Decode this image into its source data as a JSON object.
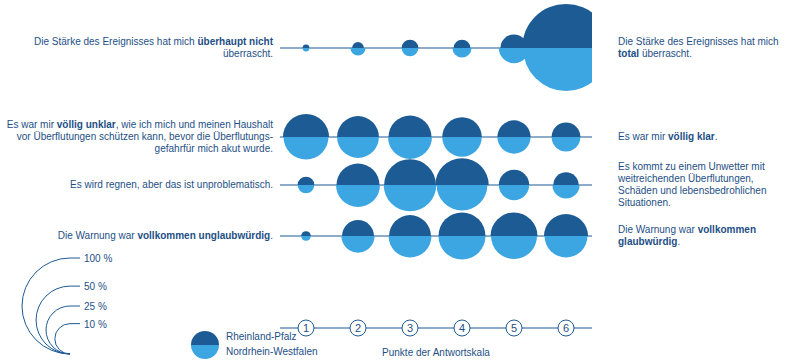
{
  "chart_data": {
    "type": "bubble",
    "x": [
      1,
      2,
      3,
      4,
      5,
      6
    ],
    "xlim": [
      0.5,
      6.5
    ],
    "xticks": [
      1,
      2,
      3,
      4,
      5,
      6
    ],
    "x_label": "Punkte der Antwortskala",
    "items": [
      {
        "left": "Die Stärke des Ereignisses hat mich überhaupt nicht überrascht.",
        "left_emphasis": "überhaupt nicht",
        "right": "Die Stärke des Ereignisses hat mich total überrascht.",
        "right_emphasis": "total"
      },
      {
        "left": "Es war mir völlig unklar, wie ich mich und meinen Haushalt vor Überflutungen schützen kann, bevor die Überflutungs-gefahrfür mich akut wurde.",
        "left_emphasis": "völlig unklar",
        "right": "Es war mir völlig klar.",
        "right_emphasis": "völlig klar"
      },
      {
        "left": "Es wird regnen, aber das ist unproblematisch.",
        "right": "Es kommt zu einem Unwetter mit weitreichenden Überflutungen, Schäden und lebensbedrohlichen Situationen."
      },
      {
        "left": "Die Warnung war vollkommen unglaubwürdig.",
        "left_emphasis": "vollkommen unglaubwürdig",
        "right": "Die Warnung war vollkommen glaubwürdig.",
        "right_emphasis": "vollkommen glaubwürdig"
      }
    ],
    "series": [
      {
        "name": "Rheinland-Pfalz",
        "color": "#1d5b94",
        "values": [
          [
            0.5,
            1.5,
            3,
            3,
            8,
            84
          ],
          [
            23,
            19,
            20,
            17,
            12,
            9
          ],
          [
            3,
            20,
            29,
            31,
            10,
            7
          ],
          [
            1,
            11,
            19,
            24,
            24,
            21
          ]
        ]
      },
      {
        "name": "Nordrhein-Westfalen",
        "color": "#3ba6e2",
        "values": [
          [
            0.5,
            2.5,
            3,
            4,
            10,
            80
          ],
          [
            22,
            19,
            21,
            17,
            12,
            9
          ],
          [
            3,
            21,
            30,
            28,
            10,
            8
          ],
          [
            1,
            12,
            20,
            24,
            23,
            20
          ]
        ]
      }
    ],
    "size_legend": [
      {
        "value": 100,
        "label": "100 %"
      },
      {
        "value": 50,
        "label": "50 %"
      },
      {
        "value": 25,
        "label": "25 %"
      },
      {
        "value": 10,
        "label": "10 %"
      }
    ]
  }
}
